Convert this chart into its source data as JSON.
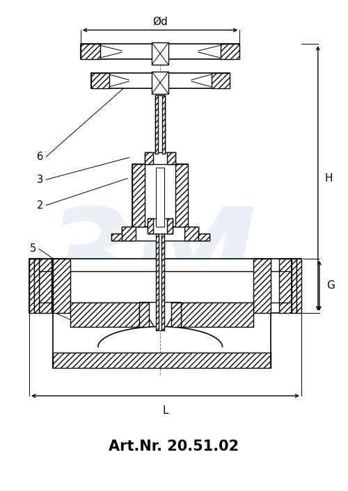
{
  "title": "Art.Nr. 20.51.02",
  "title_fontsize": 15,
  "title_fontweight": "bold",
  "bg_color": "#ffffff",
  "line_color": "#000000",
  "watermark_color": "#c8d4e8",
  "watermark_text": "3M",
  "dim_od": "Ød",
  "dim_H": "H",
  "dim_G": "G",
  "dim_L": "L",
  "fig_width": 5.0,
  "fig_height": 7.06,
  "dpi": 100
}
